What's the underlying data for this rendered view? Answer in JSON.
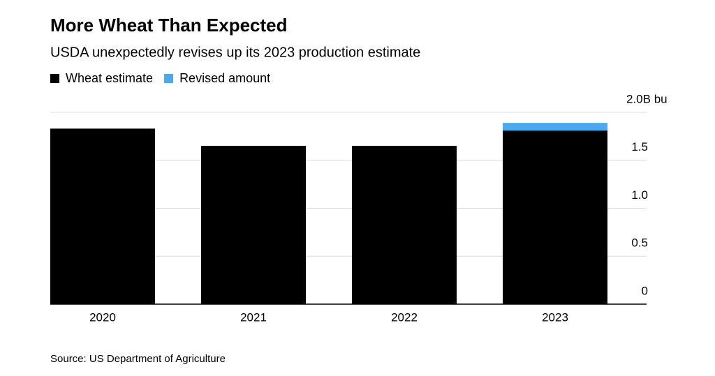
{
  "chart_data": {
    "type": "stacked_bar",
    "title": "More Wheat Than Expected",
    "subtitle": "USDA unexpectedly revises up its 2023 production estimate",
    "source": "Source: US Department of Agriculture",
    "categories": [
      "2020",
      "2021",
      "2022",
      "2023"
    ],
    "series": [
      {
        "name": "Wheat estimate",
        "color": "#000000",
        "values": [
          1.83,
          1.65,
          1.65,
          1.81
        ]
      },
      {
        "name": "Revised amount",
        "color": "#4aa9ef",
        "values": [
          null,
          null,
          null,
          0.08
        ]
      }
    ],
    "ylim": [
      0,
      2
    ],
    "yticks": [
      0,
      0.5,
      {
        "value": 1,
        "label": "1.0"
      },
      1.5,
      {
        "value": 2,
        "label": "2.0B bu"
      }
    ],
    "grid": true
  }
}
